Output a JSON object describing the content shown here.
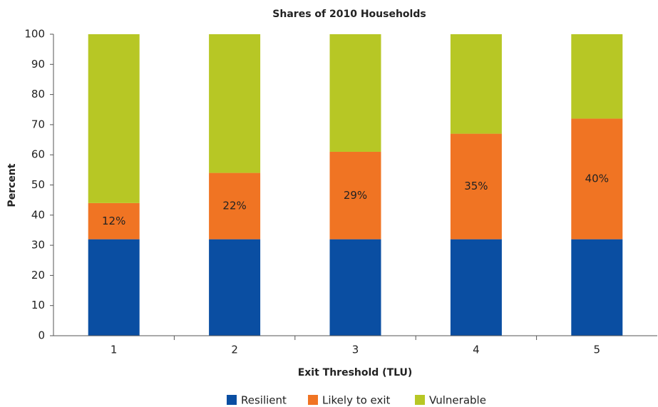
{
  "chart_data": {
    "type": "stacked_bar",
    "title": "Shares of 2010 Households",
    "x_label": "Exit Threshold (TLU)",
    "y_label": "Percent",
    "categories": [
      "1",
      "2",
      "3",
      "4",
      "5"
    ],
    "series": [
      {
        "name": "Resilient",
        "color": "#0a4ea2",
        "values": [
          32,
          32,
          32,
          32,
          32
        ]
      },
      {
        "name": "Likely to exit",
        "color": "#f07423",
        "values": [
          12,
          22,
          29,
          35,
          40
        ],
        "value_labels": [
          "12%",
          "22%",
          "29%",
          "35%",
          "40%"
        ]
      },
      {
        "name": "Vulnerable",
        "color": "#b7c725",
        "values": [
          56,
          46,
          39,
          33,
          28
        ]
      }
    ],
    "ylim": [
      0,
      100
    ],
    "yticks": [
      0,
      10,
      20,
      30,
      40,
      50,
      60,
      70,
      80,
      90,
      100
    ],
    "grid": false,
    "legend": "bottom"
  }
}
